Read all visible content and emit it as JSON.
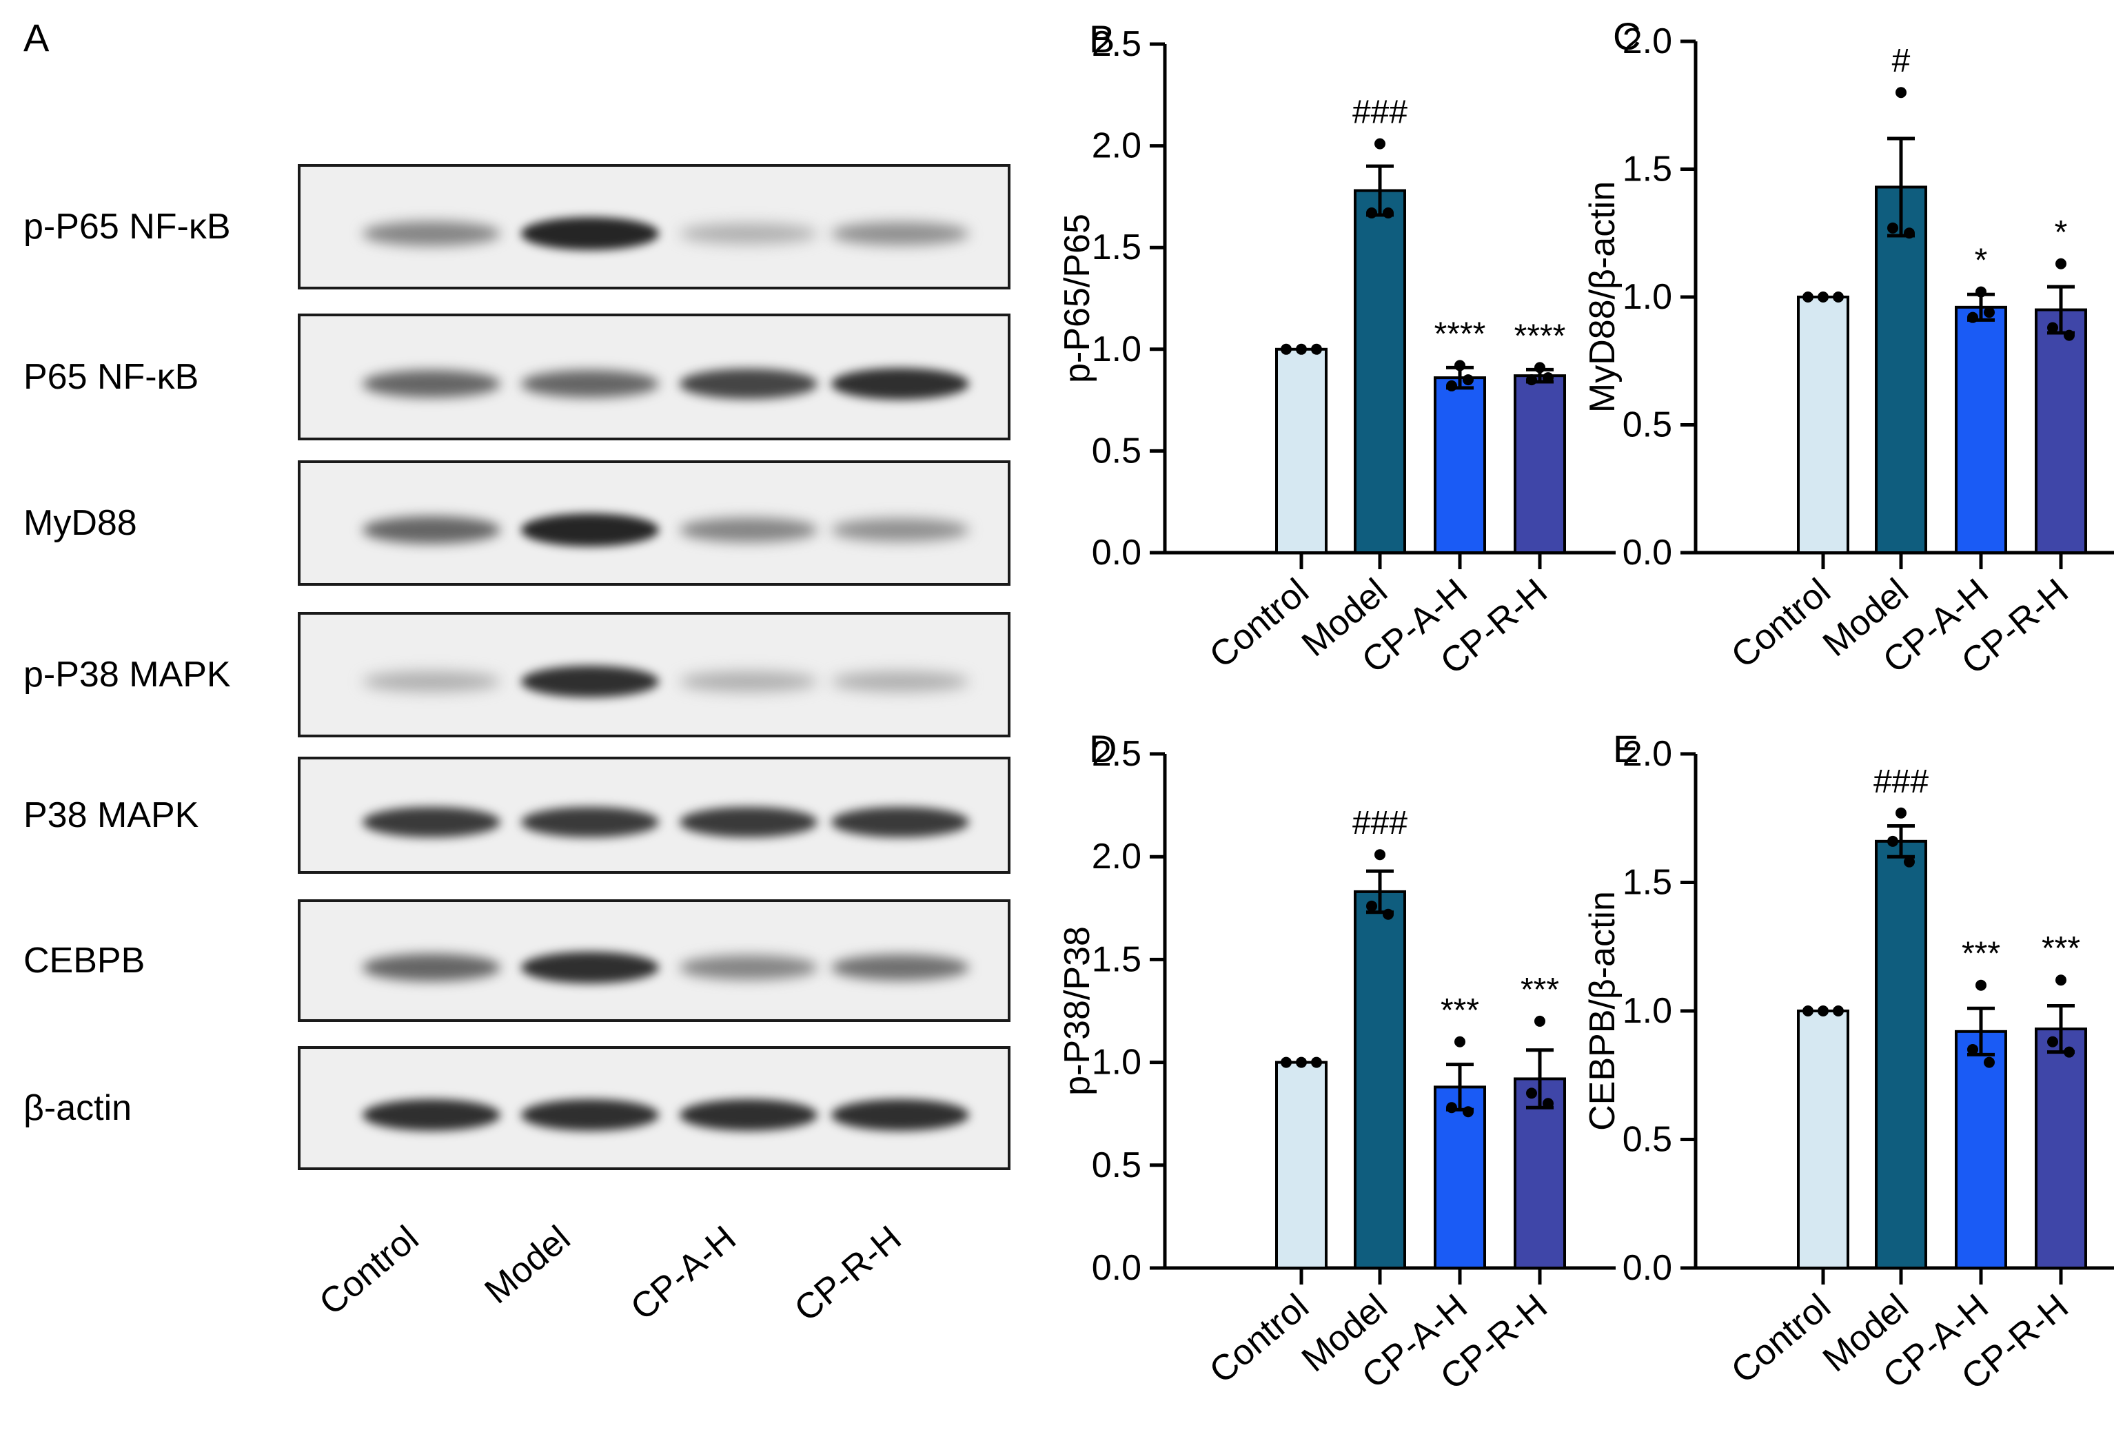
{
  "blot": {
    "letter": "A",
    "rows": [
      {
        "label": "p-P65 NF-κB",
        "intensity": [
          0.45,
          0.9,
          0.25,
          0.4
        ]
      },
      {
        "label": "P65 NF-κB",
        "intensity": [
          0.6,
          0.6,
          0.75,
          0.85
        ]
      },
      {
        "label": "MyD88",
        "intensity": [
          0.6,
          0.9,
          0.45,
          0.4
        ]
      },
      {
        "label": "p-P38 MAPK",
        "intensity": [
          0.25,
          0.85,
          0.25,
          0.25
        ]
      },
      {
        "label": "P38 MAPK",
        "intensity": [
          0.8,
          0.8,
          0.8,
          0.8
        ]
      },
      {
        "label": "CEBPB",
        "intensity": [
          0.6,
          0.85,
          0.45,
          0.55
        ]
      },
      {
        "label": "β-actin",
        "intensity": [
          0.85,
          0.85,
          0.85,
          0.85
        ]
      }
    ],
    "lanes": [
      "Control",
      "Model",
      "CP-A-H",
      "CP-R-H"
    ]
  },
  "colors": {
    "Control": "#d6e8f2",
    "Model": "#0f5d7e",
    "CP-A-H": "#1a5bf5",
    "CP-R-H": "#3f46a8",
    "axis": "#000000"
  },
  "chart_data": [
    {
      "letter": "B",
      "type": "bar",
      "ylabel": "p-P65/P65",
      "categories": [
        "Control",
        "Model",
        "CP-A-H",
        "CP-R-H"
      ],
      "values": [
        1.0,
        1.78,
        0.86,
        0.87
      ],
      "errors": [
        0.0,
        0.12,
        0.05,
        0.03
      ],
      "points": [
        [
          1.0,
          1.0,
          1.0
        ],
        [
          2.01,
          1.67,
          1.67
        ],
        [
          0.92,
          0.82,
          0.85
        ],
        [
          0.91,
          0.85,
          0.86
        ]
      ],
      "annotations": [
        "",
        "###",
        "****",
        "****"
      ],
      "ylim": [
        0,
        2.5
      ],
      "yticks": [
        "0.0",
        "0.5",
        "1.0",
        "1.5",
        "2.0",
        "2.5"
      ]
    },
    {
      "letter": "C",
      "type": "bar",
      "ylabel": "MyD88/β-actin",
      "categories": [
        "Control",
        "Model",
        "CP-A-H",
        "CP-R-H"
      ],
      "values": [
        1.0,
        1.43,
        0.96,
        0.95
      ],
      "errors": [
        0.0,
        0.19,
        0.05,
        0.09
      ],
      "points": [
        [
          1.0,
          1.0,
          1.0
        ],
        [
          1.8,
          1.27,
          1.25
        ],
        [
          1.02,
          0.92,
          0.94
        ],
        [
          1.13,
          0.88,
          0.85
        ]
      ],
      "annotations": [
        "",
        "#",
        "*",
        "*"
      ],
      "ylim": [
        0,
        2.0
      ],
      "yticks": [
        "0.0",
        "0.5",
        "1.0",
        "1.5",
        "2.0"
      ]
    },
    {
      "letter": "D",
      "type": "bar",
      "ylabel": "p-P38/P38",
      "categories": [
        "Control",
        "Model",
        "CP-A-H",
        "CP-R-H"
      ],
      "values": [
        1.0,
        1.83,
        0.88,
        0.92
      ],
      "errors": [
        0.0,
        0.1,
        0.11,
        0.14
      ],
      "points": [
        [
          1.0,
          1.0,
          1.0
        ],
        [
          2.01,
          1.76,
          1.72
        ],
        [
          1.1,
          0.78,
          0.76
        ],
        [
          1.2,
          0.85,
          0.8
        ]
      ],
      "annotations": [
        "",
        "###",
        "***",
        "***"
      ],
      "ylim": [
        0,
        2.5
      ],
      "yticks": [
        "0.0",
        "0.5",
        "1.0",
        "1.5",
        "2.0",
        "2.5"
      ]
    },
    {
      "letter": "E",
      "type": "bar",
      "ylabel": "CEBPB/β-actin",
      "categories": [
        "Control",
        "Model",
        "CP-A-H",
        "CP-R-H"
      ],
      "values": [
        1.0,
        1.66,
        0.92,
        0.93
      ],
      "errors": [
        0.0,
        0.06,
        0.09,
        0.09
      ],
      "points": [
        [
          1.0,
          1.0,
          1.0
        ],
        [
          1.77,
          1.66,
          1.58
        ],
        [
          1.1,
          0.85,
          0.8
        ],
        [
          1.12,
          0.88,
          0.84
        ]
      ],
      "annotations": [
        "",
        "###",
        "***",
        "***"
      ],
      "ylim": [
        0,
        2.0
      ],
      "yticks": [
        "0.0",
        "0.5",
        "1.0",
        "1.5",
        "2.0"
      ]
    }
  ]
}
